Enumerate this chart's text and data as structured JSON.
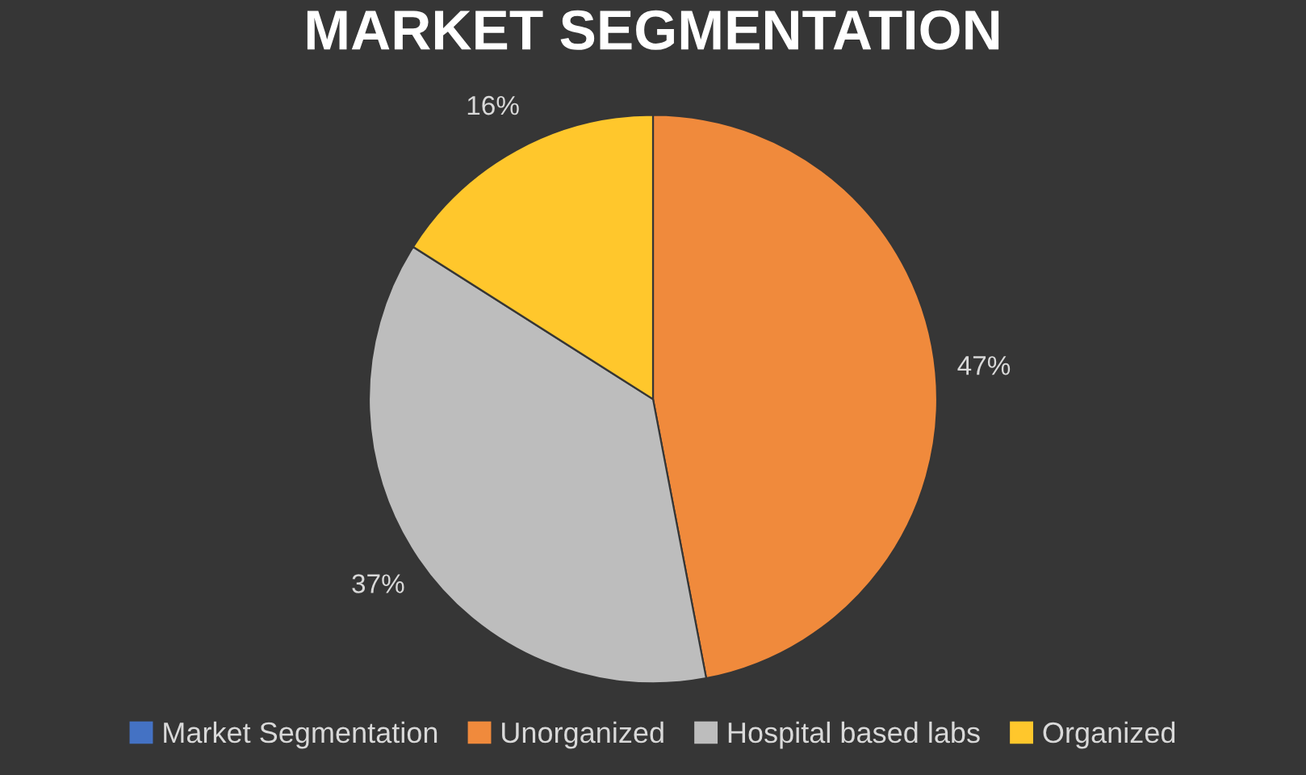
{
  "chart_data": {
    "type": "pie",
    "title": "MARKET SEGMENTATION",
    "categories": [
      "Market Segmentation",
      "Unorganized",
      "Hospital based labs",
      "Organized"
    ],
    "values": [
      0,
      47,
      37,
      16
    ],
    "value_labels": [
      null,
      "47%",
      "37%",
      "16%"
    ],
    "colors": [
      "#4472c4",
      "#f08a3c",
      "#bdbdbd",
      "#ffc72c"
    ],
    "legend": "bottom"
  }
}
